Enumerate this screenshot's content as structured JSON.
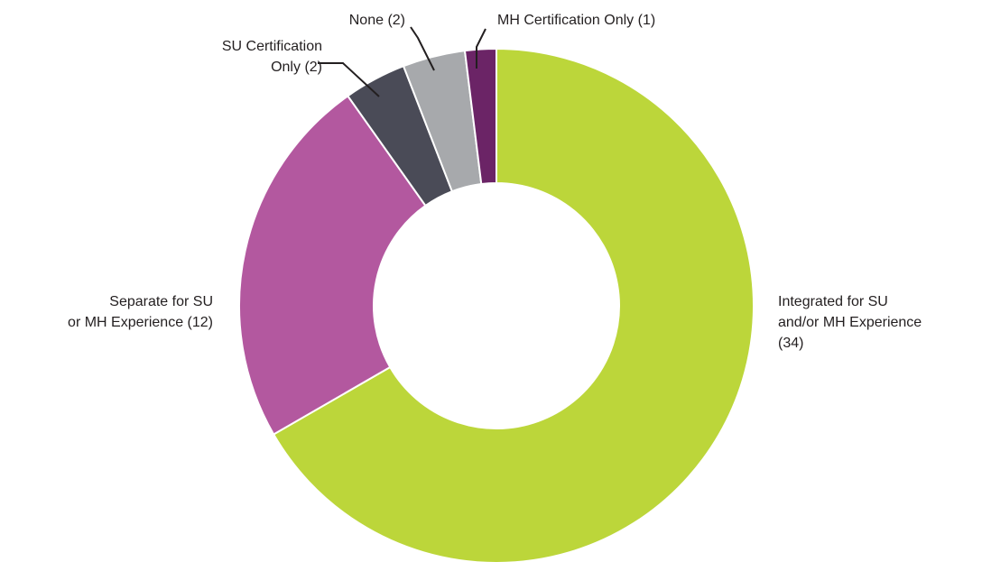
{
  "chart_data": {
    "type": "donut",
    "categories": [
      "Integrated for SU\nand/or MH Experience",
      "Separate for SU\nor MH Experience",
      "SU Certification\nOnly",
      "None",
      "MH Certification Only"
    ],
    "values": [
      34,
      12,
      2,
      2,
      1
    ],
    "value_labels": [
      "(34)",
      "(12)",
      "(2)",
      "(2)",
      "(1)"
    ],
    "colors": [
      "#bcd63a",
      "#b3589f",
      "#4a4b57",
      "#a7a9ac",
      "#6b2466"
    ]
  }
}
